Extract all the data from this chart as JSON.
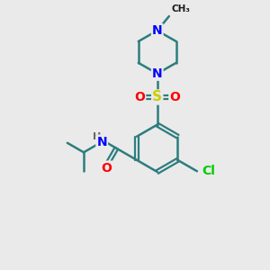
{
  "background_color": "#eaeaea",
  "bond_color": "#2d7d7d",
  "atom_colors": {
    "N": "#0000ff",
    "O": "#ff0000",
    "S": "#cccc00",
    "Cl": "#00cc00",
    "C": "#1a1a1a",
    "H": "#666666"
  },
  "figsize": [
    3.0,
    3.0
  ],
  "dpi": 100
}
